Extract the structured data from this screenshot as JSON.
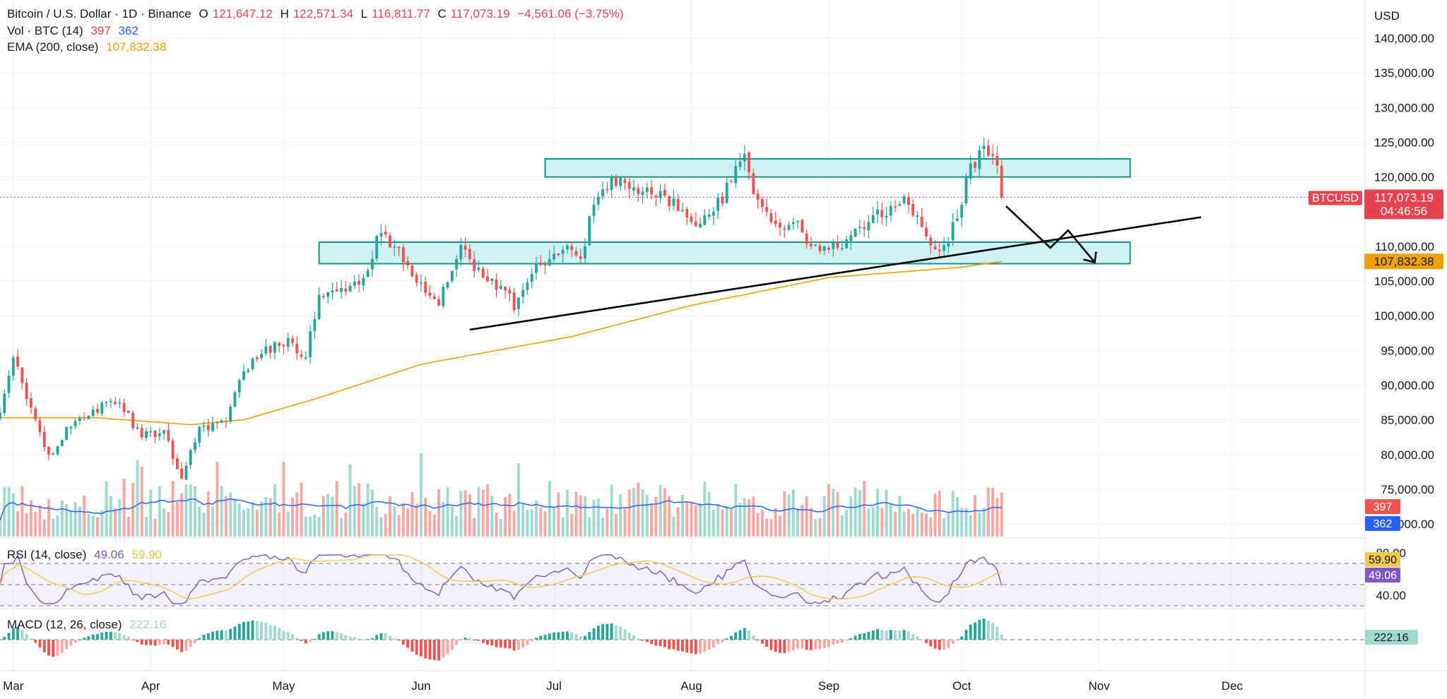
{
  "header": {
    "symbol": "Bitcoin / U.S. Dollar · 1D · Binance",
    "open_label": "O",
    "open": "121,647.12",
    "high_label": "H",
    "high": "122,571.34",
    "low_label": "L",
    "low": "116,811.77",
    "close_label": "C",
    "close": "117,073.19",
    "change": "−4,561.06 (−3.75%)"
  },
  "volume_legend": {
    "label": "Vol · BTC (14)",
    "v1": "397",
    "v2": "362"
  },
  "ema_legend": {
    "label": "EMA (200, close)",
    "value": "107,832.38"
  },
  "rsi_legend": {
    "label": "RSI (14, close)",
    "v1": "49.06",
    "v2": "59.90"
  },
  "macd_legend": {
    "label": "MACD (12, 26, close)",
    "value": "222.16"
  },
  "colors": {
    "up": "#26a69a",
    "down": "#ef5350",
    "up_light": "#9fd9cf",
    "down_light": "#f8a7a3",
    "ema": "#f0a000",
    "zone_fill": "#c9f0f2",
    "zone_border": "#0f9488",
    "rsi": "#7e57c2",
    "rsi_ma": "#f2c94c",
    "vol_ma": "#2962ff",
    "price_line": "#e5434f"
  },
  "chart_data": {
    "type": "candlestick",
    "currency": "USD",
    "y_axis_ticks": [
      "140,000.00",
      "135,000.00",
      "130,000.00",
      "125,000.00",
      "120,000.00",
      "110,000.00",
      "105,000.00",
      "100,000.00",
      "95,000.00",
      "90,000.00",
      "85,000.00",
      "80,000.00",
      "75,000.00",
      "70,000.00"
    ],
    "ylim": [
      67000,
      142000
    ],
    "x_axis_ticks": [
      "Mar",
      "Apr",
      "May",
      "Jun",
      "Jul",
      "Aug",
      "Sep",
      "Oct",
      "Nov",
      "Dec"
    ],
    "x_range": [
      "2025-02-26",
      "2025-12-31"
    ],
    "last_price": {
      "label": "BTCUSD",
      "value": "117,073.19",
      "countdown": "04:46:56"
    },
    "ema_badge": "107,832.38",
    "volume_badges": [
      "397",
      "362"
    ],
    "rsi_axis_ticks": [
      "80.00",
      "40.00"
    ],
    "rsi_badges": [
      "59.90",
      "49.06"
    ],
    "rsi_levels": [
      70,
      50,
      30
    ],
    "macd_badge": "222.16",
    "anchors_close": [
      [
        "2025-02-26",
        86000
      ],
      [
        "2025-03-01",
        94000
      ],
      [
        "2025-03-04",
        88000
      ],
      [
        "2025-03-09",
        80000
      ],
      [
        "2025-03-14",
        84000
      ],
      [
        "2025-03-19",
        86500
      ],
      [
        "2025-03-25",
        87500
      ],
      [
        "2025-03-30",
        82500
      ],
      [
        "2025-04-04",
        83500
      ],
      [
        "2025-04-08",
        76500
      ],
      [
        "2025-04-12",
        84000
      ],
      [
        "2025-04-18",
        84800
      ],
      [
        "2025-04-22",
        92000
      ],
      [
        "2025-04-26",
        94500
      ],
      [
        "2025-05-02",
        96800
      ],
      [
        "2025-05-06",
        94000
      ],
      [
        "2025-05-09",
        103000
      ],
      [
        "2025-05-15",
        103500
      ],
      [
        "2025-05-20",
        106500
      ],
      [
        "2025-05-22",
        111500
      ],
      [
        "2025-05-26",
        110000
      ],
      [
        "2025-06-01",
        104800
      ],
      [
        "2025-06-05",
        101500
      ],
      [
        "2025-06-10",
        110200
      ],
      [
        "2025-06-15",
        105500
      ],
      [
        "2025-06-21",
        103200
      ],
      [
        "2025-06-22",
        100800
      ],
      [
        "2025-06-27",
        107500
      ],
      [
        "2025-07-03",
        109500
      ],
      [
        "2025-07-07",
        108200
      ],
      [
        "2025-07-10",
        116000
      ],
      [
        "2025-07-14",
        120000
      ],
      [
        "2025-07-20",
        117500
      ],
      [
        "2025-07-25",
        118000
      ],
      [
        "2025-08-01",
        113500
      ],
      [
        "2025-08-06",
        115000
      ],
      [
        "2025-08-10",
        119300
      ],
      [
        "2025-08-13",
        123300
      ],
      [
        "2025-08-15",
        117500
      ],
      [
        "2025-08-20",
        113200
      ],
      [
        "2025-08-24",
        113500
      ],
      [
        "2025-08-28",
        110000
      ],
      [
        "2025-09-01",
        109500
      ],
      [
        "2025-09-05",
        111000
      ],
      [
        "2025-09-10",
        113500
      ],
      [
        "2025-09-15",
        115800
      ],
      [
        "2025-09-18",
        117200
      ],
      [
        "2025-09-22",
        112800
      ],
      [
        "2025-09-26",
        109300
      ],
      [
        "2025-09-30",
        114000
      ],
      [
        "2025-10-02",
        120000
      ],
      [
        "2025-10-06",
        124500
      ],
      [
        "2025-10-08",
        123000
      ],
      [
        "2025-10-09",
        121647
      ],
      [
        "2025-10-10",
        117073
      ]
    ],
    "ema": [
      [
        "2025-02-26",
        85300
      ],
      [
        "2025-03-20",
        85300
      ],
      [
        "2025-04-10",
        84300
      ],
      [
        "2025-04-22",
        85000
      ],
      [
        "2025-05-08",
        88000
      ],
      [
        "2025-06-01",
        93000
      ],
      [
        "2025-07-05",
        97000
      ],
      [
        "2025-08-01",
        101500
      ],
      [
        "2025-09-01",
        105500
      ],
      [
        "2025-10-01",
        107000
      ],
      [
        "2025-10-10",
        107832
      ]
    ],
    "zones": [
      {
        "from": "2025-06-29",
        "to": "2025-11-08",
        "low": 120000,
        "high": 122600
      },
      {
        "from": "2025-05-09",
        "to": "2025-11-08",
        "low": 107500,
        "high": 110600
      }
    ],
    "trendline": {
      "from": [
        "2025-06-12",
        98000
      ],
      "to": [
        "2025-11-24",
        114200
      ]
    },
    "projection": [
      [
        "2025-10-11",
        115800
      ],
      [
        "2025-10-21",
        109800
      ],
      [
        "2025-10-25",
        112300
      ],
      [
        "2025-10-31",
        107700
      ]
    ]
  }
}
